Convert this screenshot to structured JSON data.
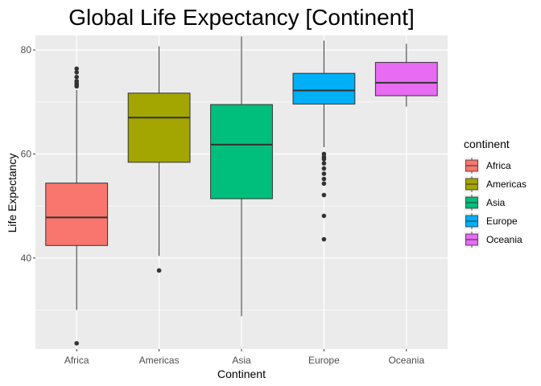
{
  "chart_data": {
    "type": "box",
    "title": "Global Life Expectancy [Continent]",
    "xlabel": "Continent",
    "ylabel": "Life Expectancy",
    "ylim": [
      22.5,
      82.8
    ],
    "yticks": [
      40,
      60,
      80
    ],
    "ytick_labels": [
      "40",
      "60",
      "80"
    ],
    "grid": true,
    "legend": {
      "title": "continent",
      "position": "right"
    },
    "categories": [
      "Africa",
      "Americas",
      "Asia",
      "Europe",
      "Oceania"
    ],
    "colors": [
      "#F8766D",
      "#A3A500",
      "#00BF7D",
      "#00B0F6",
      "#E76BF3"
    ],
    "boxes": [
      {
        "name": "Africa",
        "min": 30.0,
        "q1": 42.4,
        "median": 47.8,
        "q3": 54.4,
        "max": 72.3,
        "outliers": [
          23.6,
          73.0,
          73.3,
          73.6,
          74.0,
          74.8,
          75.7,
          76.4
        ]
      },
      {
        "name": "Americas",
        "min": 40.4,
        "q1": 58.4,
        "median": 67.0,
        "q3": 71.7,
        "max": 80.7,
        "outliers": [
          37.6
        ]
      },
      {
        "name": "Asia",
        "min": 28.8,
        "q1": 51.4,
        "median": 61.8,
        "q3": 69.5,
        "max": 82.6,
        "outliers": []
      },
      {
        "name": "Europe",
        "min": 61.3,
        "q1": 69.6,
        "median": 72.2,
        "q3": 75.5,
        "max": 81.8,
        "outliers": [
          43.6,
          48.1,
          52.1,
          54.3,
          55.2,
          56.2,
          57.2,
          58.2,
          59.0,
          59.4,
          60.0
        ]
      },
      {
        "name": "Oceania",
        "min": 69.1,
        "q1": 71.2,
        "median": 73.7,
        "q3": 77.6,
        "max": 81.2,
        "outliers": []
      }
    ]
  }
}
